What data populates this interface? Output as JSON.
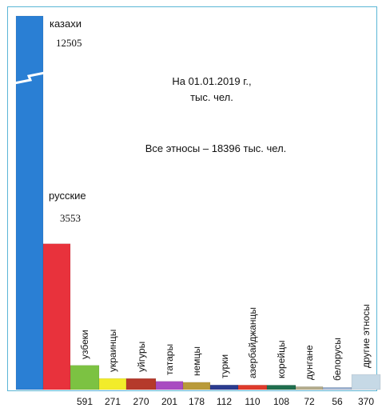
{
  "chart_data": {
    "type": "bar",
    "title": "",
    "xlabel": "",
    "ylabel": "",
    "notes": [
      "На 01.01.2019 г.,",
      "тыс. чел.",
      "Все этносы – 18396 тыс. чел."
    ],
    "categories": [
      "казахи",
      "русские",
      "узбеки",
      "украинцы",
      "уйгуры",
      "татары",
      "немцы",
      "турки",
      "азербайджанцы",
      "корейцы",
      "дунгане",
      "белорусы",
      "другие этносы"
    ],
    "values": [
      12505,
      3553,
      591,
      271,
      270,
      201,
      178,
      112,
      110,
      108,
      72,
      56,
      370
    ],
    "value_labels": [
      "12505",
      "3553",
      "591",
      "271",
      "270",
      "201",
      "178",
      "112",
      "110",
      "108",
      "72",
      "56",
      "370"
    ],
    "colors": [
      "#2a7fd4",
      "#e8323c",
      "#7cc242",
      "#f2ec2a",
      "#b5392b",
      "#a94bc1",
      "#b99a3a",
      "#2b3b8f",
      "#df3a2b",
      "#1f6e4e",
      "#b4ac8c",
      "#9fb4d2",
      "#c6d9e6"
    ],
    "axis_break": true,
    "grid": false,
    "legend": "none"
  }
}
